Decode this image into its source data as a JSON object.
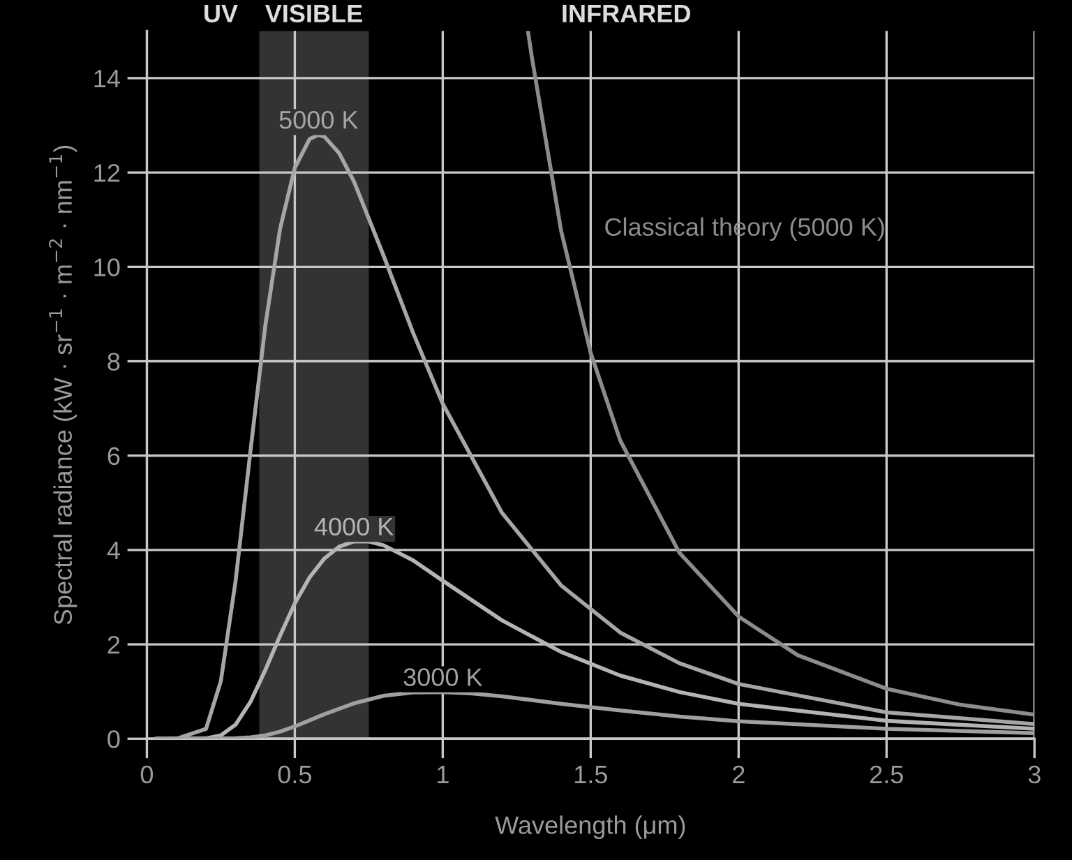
{
  "chart_data": {
    "type": "line",
    "xlabel": "Wavelength (μm)",
    "ylabel": "Spectral radiance (kW · sr$^{−1}$ · m$^{−2}$ · nm$^{−1}$)",
    "xlim": [
      0,
      3
    ],
    "ylim": [
      0,
      15
    ],
    "xticks": [
      0,
      0.5,
      1,
      1.5,
      2,
      2.5,
      3
    ],
    "yticks": [
      0,
      2,
      4,
      6,
      8,
      10,
      12,
      14
    ],
    "grid": true,
    "legend": false,
    "marker": "none",
    "line_style": "solid",
    "annotations": [
      "UV",
      "INFRARED"
    ],
    "bands": [
      {
        "axis": "x",
        "from": 0.38,
        "to": 0.75,
        "label": "VISIBLE",
        "color": "#333333"
      }
    ],
    "series": [
      {
        "name": "5000 K",
        "color": "#a6a6a6",
        "x": [
          0.03,
          0.1,
          0.2,
          0.25,
          0.3,
          0.35,
          0.4,
          0.45,
          0.5,
          0.55,
          0.58,
          0.6,
          0.65,
          0.7,
          0.8,
          0.9,
          1.0,
          1.2,
          1.4,
          1.6,
          1.8,
          2.0,
          2.5,
          3.0
        ],
        "values": [
          0,
          0,
          0.21,
          1.22,
          3.35,
          6.09,
          8.74,
          10.8,
          12.1,
          12.71,
          12.8,
          12.76,
          12.41,
          11.81,
          10.24,
          8.6,
          7.1,
          4.79,
          3.25,
          2.25,
          1.6,
          1.16,
          0.56,
          0.31
        ]
      },
      {
        "name": "4000 K",
        "color": "#b4b4b4",
        "x": [
          0.03,
          0.2,
          0.25,
          0.3,
          0.35,
          0.4,
          0.45,
          0.5,
          0.55,
          0.6,
          0.65,
          0.7,
          0.75,
          0.8,
          0.9,
          1.0,
          1.2,
          1.4,
          1.6,
          1.8,
          2.0,
          2.5,
          3.0
        ],
        "values": [
          0,
          0.01,
          0.07,
          0.3,
          0.78,
          1.45,
          2.18,
          2.87,
          3.42,
          3.82,
          4.07,
          4.18,
          4.18,
          4.1,
          3.78,
          3.35,
          2.51,
          1.84,
          1.34,
          0.99,
          0.74,
          0.38,
          0.21
        ]
      },
      {
        "name": "3000 K",
        "color": "#a0a0a0",
        "x": [
          0.03,
          0.3,
          0.35,
          0.4,
          0.45,
          0.5,
          0.6,
          0.7,
          0.8,
          0.9,
          1.0,
          1.1,
          1.2,
          1.4,
          1.6,
          1.8,
          2.0,
          2.5,
          3.0
        ],
        "values": [
          0,
          0.01,
          0.03,
          0.07,
          0.15,
          0.26,
          0.52,
          0.75,
          0.91,
          0.98,
          0.99,
          0.96,
          0.9,
          0.74,
          0.6,
          0.47,
          0.37,
          0.21,
          0.12
        ]
      },
      {
        "name": "Classical theory (5000 K)",
        "color": "#8c8c8c",
        "x": [
          1.288,
          1.3,
          1.4,
          1.5,
          1.6,
          1.8,
          2.0,
          2.2,
          2.5,
          2.75,
          3.0
        ],
        "values": [
          15,
          14.49,
          10.77,
          8.18,
          6.32,
          3.94,
          2.59,
          1.77,
          1.06,
          0.72,
          0.51
        ]
      }
    ]
  }
}
